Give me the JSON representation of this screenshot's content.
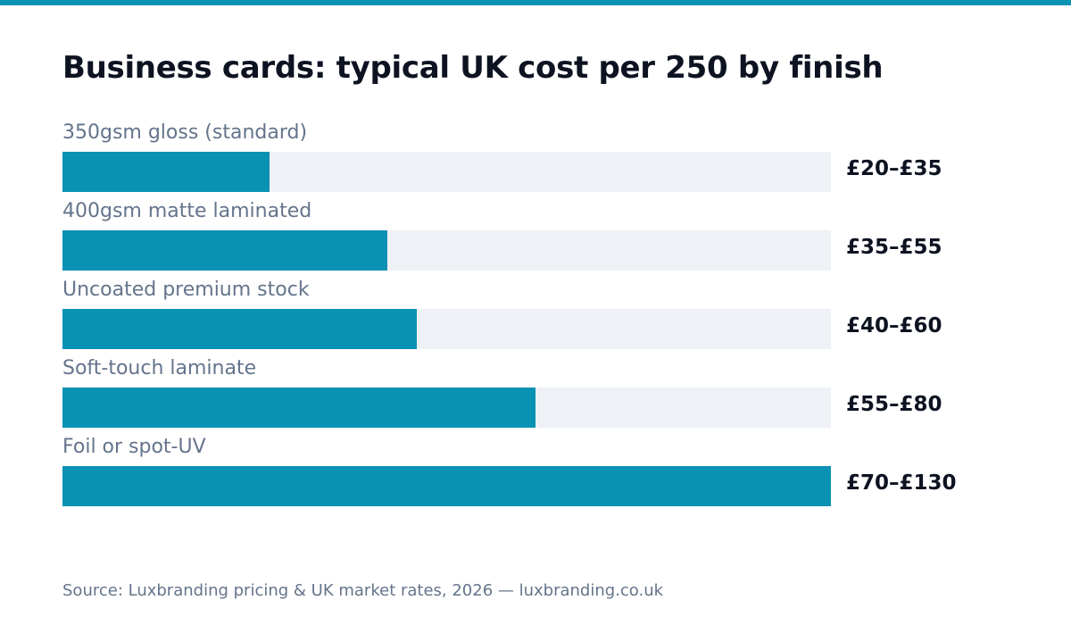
{
  "colors": {
    "accent": "#0a92b4",
    "track": "#eef2f6",
    "title": "#0d1321",
    "muted": "#64748b"
  },
  "title": "Business cards: typical UK cost per 250 by finish",
  "source": "Source: Luxbranding pricing & UK market rates, 2026 — luxbranding.co.uk",
  "chart_data": {
    "type": "bar",
    "orientation": "horizontal",
    "title": "Business cards: typical UK cost per 250 by finish",
    "categories": [
      "350gsm gloss (standard)",
      "400gsm matte laminated",
      "Uncoated premium stock",
      "Soft-touch laminate",
      "Foil or spot-UV"
    ],
    "value_labels": [
      "£20–£35",
      "£35–£55",
      "£40–£60",
      "£55–£80",
      "£70–£130"
    ],
    "ranges": [
      [
        20,
        35
      ],
      [
        35,
        55
      ],
      [
        40,
        60
      ],
      [
        55,
        80
      ],
      [
        70,
        130
      ]
    ],
    "values": [
      35,
      55,
      60,
      80,
      130
    ],
    "xlim": [
      0,
      130
    ],
    "grid": false,
    "legend": "none"
  }
}
